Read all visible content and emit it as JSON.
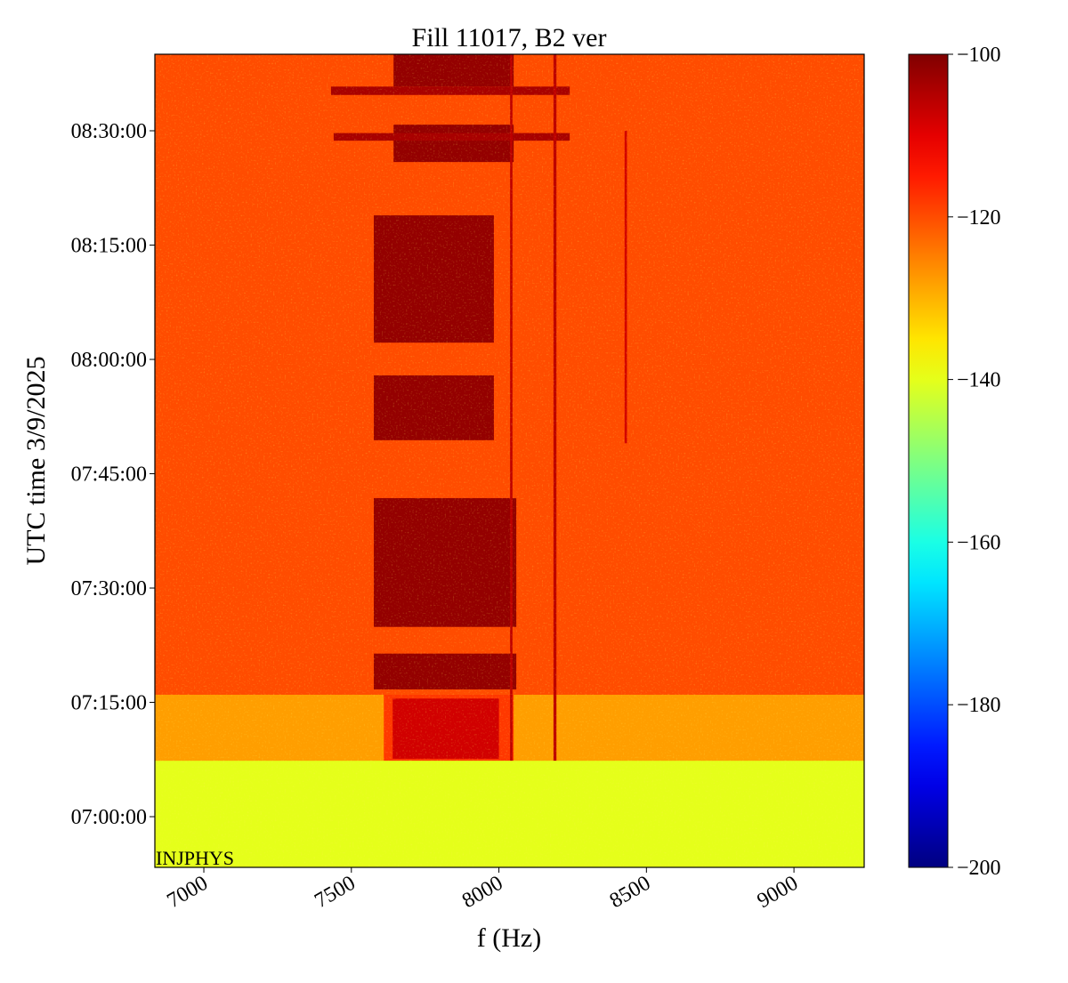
{
  "chart_data": {
    "type": "spectrogram",
    "title": "Fill 11017, B2 ver",
    "xlabel": "f (Hz)",
    "ylabel": "UTC time 3/9/2025",
    "annotation": "INJPHYS",
    "colormap": "jet",
    "background": -120,
    "xlim": [
      6834,
      9238
    ],
    "xticks": [
      7000,
      7500,
      8000,
      8500,
      9000
    ],
    "ylim": [
      413.35,
      520.04
    ],
    "yticks": [
      {
        "value": 420,
        "label": "07:00:00"
      },
      {
        "value": 435,
        "label": "07:15:00"
      },
      {
        "value": 450,
        "label": "07:30:00"
      },
      {
        "value": 465,
        "label": "07:45:00"
      },
      {
        "value": 480,
        "label": "08:00:00"
      },
      {
        "value": 495,
        "label": "08:15:00"
      },
      {
        "value": 510,
        "label": "08:30:00"
      }
    ],
    "clim": [
      -200,
      -100
    ],
    "cticks": [
      {
        "value": -200,
        "label": "−200"
      },
      {
        "value": -180,
        "label": "−180"
      },
      {
        "value": -160,
        "label": "−160"
      },
      {
        "value": -140,
        "label": "−140"
      },
      {
        "value": -120,
        "label": "−120"
      },
      {
        "value": -100,
        "label": "−100"
      }
    ],
    "regions": [
      {
        "xlim": [
          6834,
          9238
        ],
        "ylim": [
          413.35,
          427.35
        ],
        "value": -140
      },
      {
        "xlim": [
          6834,
          9238
        ],
        "ylim": [
          427.35,
          436.0
        ],
        "value": -128
      },
      {
        "xlim": [
          7610,
          8050
        ],
        "ylim": [
          427.35,
          436.0
        ],
        "value": -118
      },
      {
        "xlim": [
          7640,
          8000
        ],
        "ylim": [
          427.6,
          435.5
        ],
        "value": -108
      },
      {
        "xlim": [
          7576,
          8059
        ],
        "ylim": [
          436.7,
          441.4
        ],
        "value": -102
      },
      {
        "xlim": [
          7576,
          8059
        ],
        "ylim": [
          444.9,
          461.8
        ],
        "value": -102
      },
      {
        "xlim": [
          7576,
          7983
        ],
        "ylim": [
          469.4,
          477.9
        ],
        "value": -102
      },
      {
        "xlim": [
          7576,
          7983
        ],
        "ylim": [
          482.2,
          498.9
        ],
        "value": -102
      },
      {
        "xlim": [
          7643,
          8050
        ],
        "ylim": [
          505.9,
          510.8
        ],
        "value": -102
      },
      {
        "xlim": [
          7440,
          8240
        ],
        "ylim": [
          508.7,
          509.7
        ],
        "value": -104
      },
      {
        "xlim": [
          7643,
          8050
        ],
        "ylim": [
          515.8,
          520.04
        ],
        "value": -102
      },
      {
        "xlim": [
          7431,
          8240
        ],
        "ylim": [
          514.7,
          515.8
        ],
        "value": -104
      },
      {
        "xlim": [
          8038,
          8046
        ],
        "ylim": [
          427.35,
          520.04
        ],
        "value": -106
      },
      {
        "xlim": [
          8185,
          8195
        ],
        "ylim": [
          427.35,
          520.04
        ],
        "value": -106
      },
      {
        "xlim": [
          8426,
          8434
        ],
        "ylim": [
          469.0,
          510.0
        ],
        "value": -108
      }
    ]
  }
}
